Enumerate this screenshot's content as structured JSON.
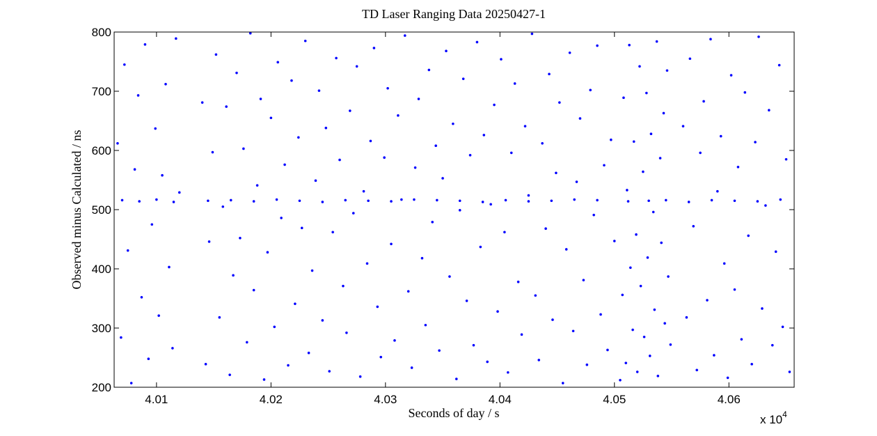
{
  "chart_data": {
    "type": "scatter",
    "title": "TD Laser Ranging Data 20250427-1",
    "x_label": "Seconds of day / s",
    "y_label": "Observed minus Calculated / ns",
    "x_multiplier": "x 10",
    "x_multiplier_exponent": "4",
    "color": "#0000ff",
    "xlim": [
      40063,
      40657
    ],
    "ylim": [
      200,
      800
    ],
    "xticks": [
      {
        "value": 40100,
        "label": "4.01"
      },
      {
        "value": 40200,
        "label": "4.02"
      },
      {
        "value": 40300,
        "label": "4.03"
      },
      {
        "value": 40400,
        "label": "4.04"
      },
      {
        "value": 40500,
        "label": "4.05"
      },
      {
        "value": 40600,
        "label": "4.06"
      }
    ],
    "yticks": [
      200,
      300,
      400,
      500,
      600,
      700,
      800
    ],
    "x": [
      40066,
      40069,
      40072,
      40075,
      40078,
      40081,
      40084,
      40087,
      40090,
      40093,
      40096,
      40099,
      40102,
      40105,
      40108,
      40111,
      40114,
      40117,
      40120,
      40140,
      40143,
      40146,
      40149,
      40152,
      40155,
      40158,
      40161,
      40164,
      40167,
      40170,
      40173,
      40176,
      40179,
      40182,
      40185,
      40188,
      40191,
      40194,
      40197,
      40200,
      40203,
      40206,
      40209,
      40212,
      40215,
      40218,
      40221,
      40224,
      40227,
      40230,
      40233,
      40236,
      40239,
      40242,
      40245,
      40248,
      40251,
      40254,
      40257,
      40260,
      40263,
      40266,
      40269,
      40272,
      40275,
      40278,
      40281,
      40284,
      40287,
      40290,
      40293,
      40296,
      40299,
      40302,
      40305,
      40308,
      40311,
      40314,
      40317,
      40320,
      40323,
      40326,
      40329,
      40332,
      40335,
      40338,
      40341,
      40344,
      40347,
      40350,
      40353,
      40356,
      40359,
      40362,
      40365,
      40368,
      40371,
      40374,
      40377,
      40380,
      40383,
      40386,
      40389,
      40392,
      40395,
      40398,
      40401,
      40404,
      40407,
      40410,
      40413,
      40416,
      40419,
      40422,
      40425,
      40428,
      40431,
      40434,
      40437,
      40440,
      40443,
      40446,
      40449,
      40452,
      40455,
      40458,
      40461,
      40464,
      40467,
      40470,
      40473,
      40476,
      40479,
      40482,
      40485,
      40488,
      40491,
      40494,
      40497,
      40500,
      40505,
      40507,
      40508,
      40510,
      40511,
      40513,
      40514,
      40516,
      40517,
      40519,
      40520,
      40522,
      40523,
      40525,
      40526,
      40528,
      40529,
      40531,
      40532,
      40534,
      40535,
      40537,
      40538,
      40540,
      40541,
      40543,
      40544,
      40546,
      40547,
      40549,
      40560,
      40563,
      40566,
      40569,
      40572,
      40575,
      40578,
      40581,
      40584,
      40587,
      40590,
      40593,
      40596,
      40599,
      40602,
      40605,
      40608,
      40611,
      40614,
      40617,
      40620,
      40623,
      40626,
      40629,
      40632,
      40635,
      40638,
      40641,
      40644,
      40647,
      40650,
      40653,
      40070,
      40085,
      40100,
      40115,
      40145,
      40165,
      40185,
      40205,
      40225,
      40245,
      40265,
      40285,
      40305,
      40325,
      40345,
      40365,
      40385,
      40405,
      40425,
      40445,
      40465,
      40485,
      40512,
      40530,
      40545,
      40565,
      40585,
      40605,
      40625,
      40645
    ],
    "values": [
      612,
      284,
      745,
      431,
      207,
      568,
      693,
      352,
      779,
      248,
      475,
      637,
      321,
      558,
      712,
      403,
      266,
      789,
      529,
      681,
      239,
      446,
      597,
      762,
      318,
      505,
      674,
      221,
      389,
      731,
      452,
      603,
      276,
      798,
      364,
      541,
      687,
      213,
      428,
      655,
      302,
      749,
      486,
      576,
      237,
      718,
      341,
      622,
      469,
      785,
      258,
      397,
      549,
      701,
      313,
      638,
      227,
      462,
      756,
      584,
      371,
      292,
      667,
      494,
      742,
      218,
      531,
      409,
      616,
      773,
      336,
      251,
      588,
      705,
      442,
      279,
      659,
      517,
      794,
      362,
      233,
      571,
      687,
      418,
      305,
      736,
      479,
      608,
      262,
      553,
      768,
      387,
      645,
      214,
      499,
      721,
      346,
      592,
      271,
      783,
      437,
      626,
      243,
      509,
      677,
      328,
      754,
      462,
      225,
      596,
      713,
      378,
      289,
      641,
      524,
      797,
      355,
      246,
      612,
      468,
      729,
      314,
      562,
      681,
      207,
      433,
      765,
      295,
      547,
      654,
      381,
      238,
      702,
      491,
      777,
      323,
      575,
      263,
      618,
      447,
      212,
      356,
      689,
      241,
      533,
      778,
      402,
      297,
      615,
      458,
      226,
      742,
      371,
      564,
      285,
      697,
      419,
      253,
      628,
      496,
      331,
      784,
      219,
      587,
      444,
      663,
      308,
      735,
      387,
      272,
      641,
      318,
      755,
      472,
      229,
      596,
      683,
      347,
      788,
      254,
      531,
      624,
      409,
      216,
      727,
      365,
      572,
      281,
      698,
      456,
      239,
      614,
      792,
      333,
      507,
      668,
      271,
      429,
      744,
      302,
      585,
      226,
      516,
      514,
      517,
      513,
      515,
      516,
      514,
      517,
      515,
      513,
      516,
      515,
      514,
      517,
      516,
      515,
      513,
      516,
      514,
      515,
      517,
      516,
      514,
      515,
      516,
      513,
      516,
      515,
      514,
      517
    ]
  }
}
